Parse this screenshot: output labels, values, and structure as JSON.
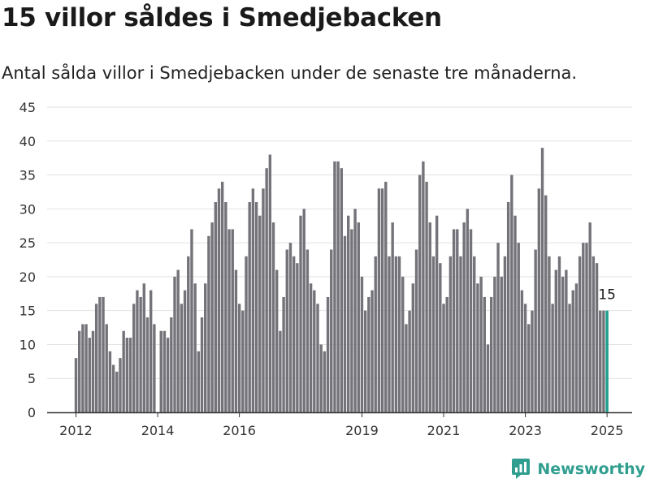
{
  "header": {
    "title": "15 villor såldes i Smedjebacken",
    "subtitle": "Antal sålda villor i Smedjebacken under de senaste tre månaderna."
  },
  "brand": {
    "name": "Newsworthy",
    "icon": "newsworthy-logo-icon"
  },
  "colors": {
    "bar": "#747379",
    "highlight": "#1f9e8e",
    "grid": "#e2e2e2",
    "axis": "#333333"
  },
  "chart_data": {
    "type": "bar",
    "title": "",
    "xlabel": "",
    "ylabel": "",
    "ylim": [
      0,
      45
    ],
    "yticks": [
      0,
      5,
      10,
      15,
      20,
      25,
      30,
      35,
      40,
      45
    ],
    "xticks": [
      "2012",
      "2014",
      "2016",
      "2019",
      "2021",
      "2023",
      "2025"
    ],
    "grid": true,
    "start_period": "2012-01",
    "highlight_label": "15",
    "values": [
      8,
      12,
      13,
      13,
      11,
      12,
      16,
      17,
      17,
      13,
      9,
      7,
      6,
      8,
      12,
      11,
      11,
      16,
      18,
      17,
      19,
      14,
      18,
      13,
      0,
      12,
      12,
      11,
      14,
      20,
      21,
      16,
      18,
      23,
      27,
      19,
      9,
      14,
      19,
      26,
      28,
      31,
      33,
      34,
      31,
      27,
      27,
      21,
      16,
      15,
      23,
      31,
      33,
      31,
      29,
      33,
      36,
      38,
      28,
      21,
      12,
      17,
      24,
      25,
      23,
      22,
      29,
      30,
      24,
      19,
      18,
      16,
      10,
      9,
      17,
      24,
      37,
      37,
      36,
      26,
      29,
      27,
      30,
      28,
      20,
      15,
      17,
      18,
      23,
      33,
      33,
      34,
      23,
      28,
      23,
      23,
      20,
      13,
      15,
      19,
      24,
      35,
      37,
      34,
      28,
      23,
      29,
      22,
      16,
      17,
      23,
      27,
      27,
      23,
      28,
      30,
      27,
      23,
      19,
      20,
      17,
      10,
      17,
      20,
      25,
      20,
      23,
      31,
      35,
      29,
      25,
      18,
      16,
      13,
      15,
      24,
      33,
      39,
      32,
      23,
      16,
      21,
      23,
      20,
      21,
      16,
      18,
      19,
      23,
      25,
      25,
      28,
      23,
      22,
      15,
      15,
      15
    ]
  }
}
